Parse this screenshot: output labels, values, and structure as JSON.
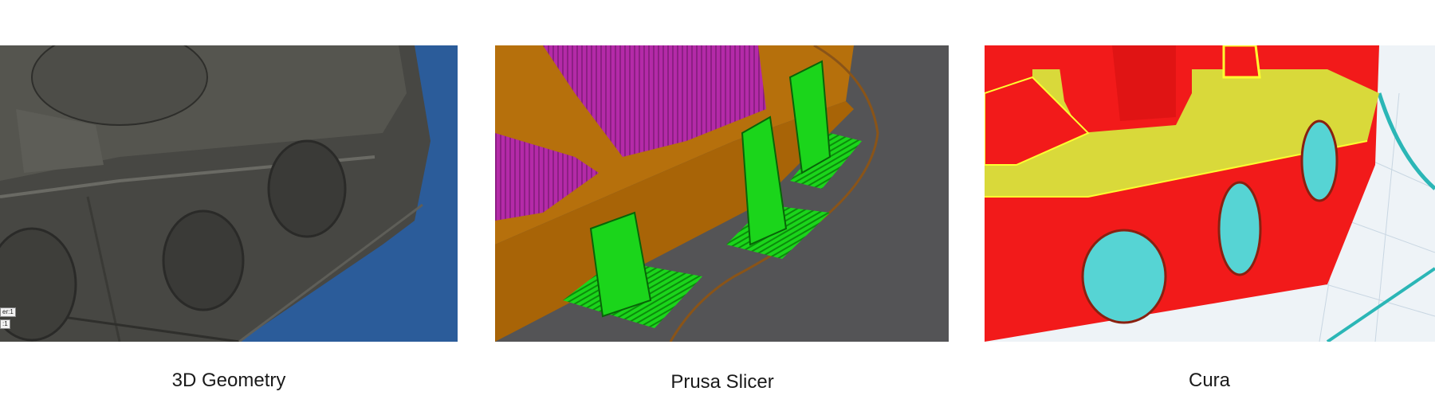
{
  "panels": [
    {
      "caption": "3D Geometry",
      "image": "cad-model-render",
      "overlay_labels": [
        "er:1",
        ":1"
      ]
    },
    {
      "caption": "Prusa Slicer",
      "image": "prusa-slicer-preview"
    },
    {
      "caption": "Cura",
      "image": "cura-slicer-preview"
    }
  ],
  "colors": {
    "cad_background": "#2b5c9a",
    "cad_body": "#474743",
    "prusa_background": "#545456",
    "prusa_perimeter": "#b6700c",
    "prusa_infill": "#b42aa8",
    "prusa_support": "#1bd51b",
    "cura_wall": "#f21a1a",
    "cura_infill": "#d9d93a",
    "cura_support": "#56d4d4",
    "cura_background": "#eef3f7"
  }
}
